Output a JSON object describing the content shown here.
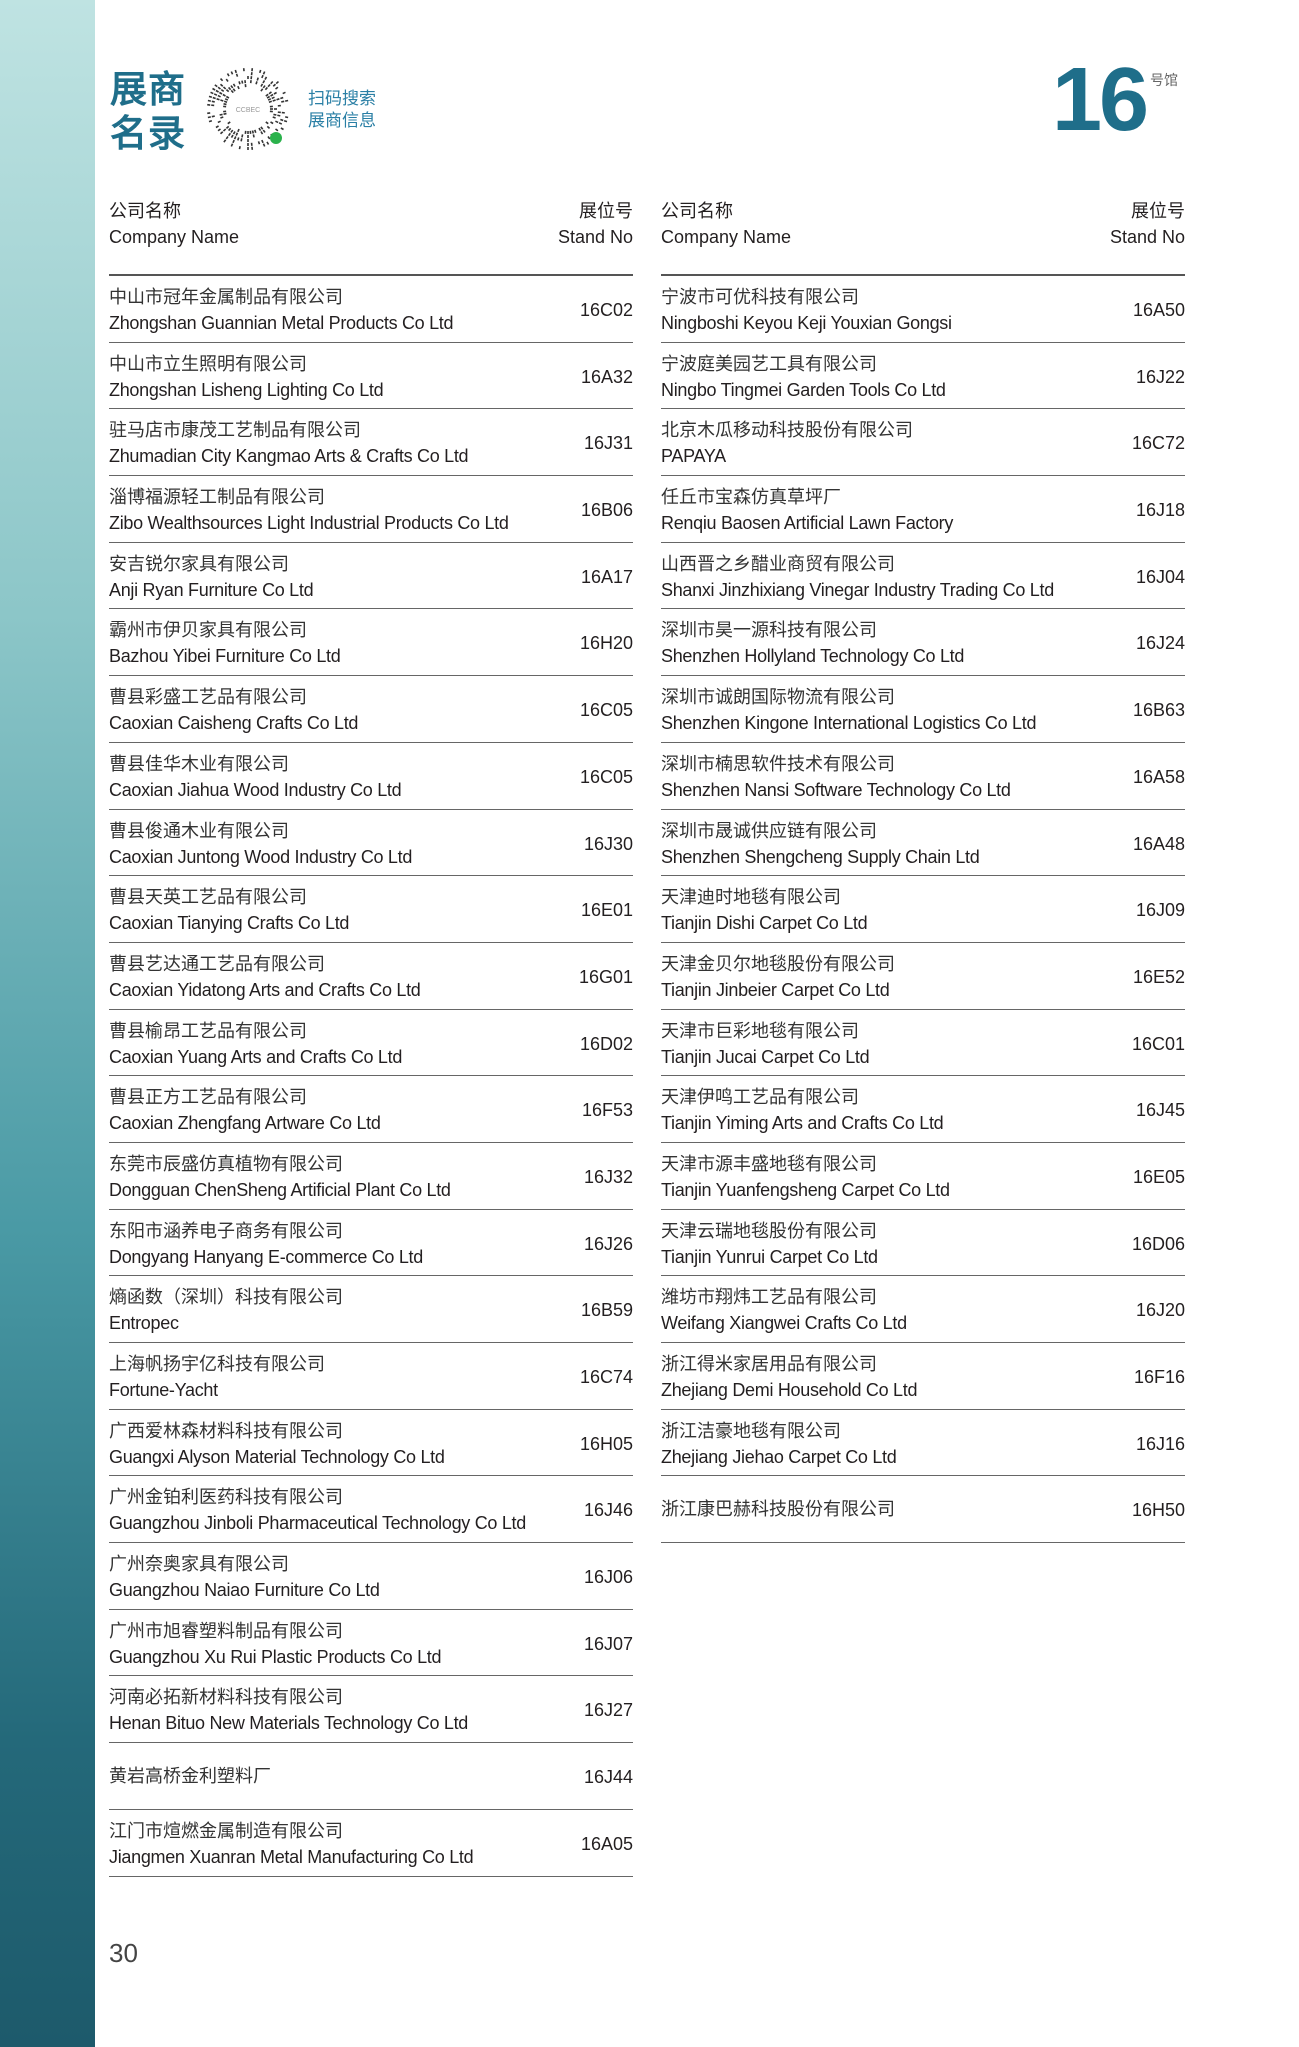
{
  "header": {
    "title_line1": "展商",
    "title_line2": "名录",
    "scan_line1": "扫码搜索",
    "scan_line2": "展商信息",
    "hall_number": "16",
    "hall_unit": "号馆",
    "qr_logo_text": "CCBEC"
  },
  "columns_header": {
    "company_zh": "公司名称",
    "company_en": "Company Name",
    "stand_zh": "展位号",
    "stand_en": "Stand No"
  },
  "left_rows": [
    {
      "zh": "中山市冠年金属制品有限公司",
      "en": "Zhongshan Guannian Metal Products Co Ltd",
      "no": "16C02"
    },
    {
      "zh": "中山市立生照明有限公司",
      "en": "Zhongshan Lisheng Lighting Co Ltd",
      "no": "16A32"
    },
    {
      "zh": "驻马店市康茂工艺制品有限公司",
      "en": "Zhumadian City Kangmao Arts & Crafts Co Ltd",
      "no": "16J31"
    },
    {
      "zh": "淄博福源轻工制品有限公司",
      "en": "Zibo Wealthsources Light Industrial Products Co Ltd",
      "no": "16B06"
    },
    {
      "zh": "安吉锐尔家具有限公司",
      "en": "Anji Ryan Furniture Co Ltd",
      "no": "16A17"
    },
    {
      "zh": "霸州市伊贝家具有限公司",
      "en": "Bazhou Yibei Furniture Co  Ltd",
      "no": "16H20"
    },
    {
      "zh": "曹县彩盛工艺品有限公司",
      "en": "Caoxian Caisheng Crafts Co Ltd",
      "no": "16C05"
    },
    {
      "zh": "曹县佳华木业有限公司",
      "en": "Caoxian Jiahua Wood Industry Co Ltd",
      "no": "16C05"
    },
    {
      "zh": "曹县俊通木业有限公司",
      "en": "Caoxian Juntong Wood Industry Co Ltd",
      "no": "16J30"
    },
    {
      "zh": "曹县天英工艺品有限公司",
      "en": "Caoxian Tianying Crafts Co Ltd",
      "no": "16E01"
    },
    {
      "zh": "曹县艺达通工艺品有限公司",
      "en": "Caoxian Yidatong Arts and Crafts Co Ltd",
      "no": "16G01"
    },
    {
      "zh": "曹县榆昂工艺品有限公司",
      "en": "Caoxian Yuang Arts and Crafts Co Ltd",
      "no": "16D02"
    },
    {
      "zh": "曹县正方工艺品有限公司",
      "en": "Caoxian Zhengfang Artware Co Ltd",
      "no": "16F53"
    },
    {
      "zh": "东莞市辰盛仿真植物有限公司",
      "en": "Dongguan ChenSheng Artificial Plant Co Ltd",
      "no": "16J32"
    },
    {
      "zh": "东阳市涵养电子商务有限公司",
      "en": "Dongyang Hanyang E-commerce Co Ltd",
      "no": "16J26"
    },
    {
      "zh": "熵函数（深圳）科技有限公司",
      "en": "Entropec",
      "no": "16B59"
    },
    {
      "zh": "上海帆扬宇亿科技有限公司",
      "en": "Fortune-Yacht",
      "no": "16C74"
    },
    {
      "zh": "广西爱林森材料科技有限公司",
      "en": "Guangxi Alyson Material Technology Co Ltd",
      "no": "16H05"
    },
    {
      "zh": "广州金铂利医药科技有限公司",
      "en": "Guangzhou Jinboli Pharmaceutical Technology Co Ltd",
      "no": "16J46"
    },
    {
      "zh": "广州奈奥家具有限公司",
      "en": "Guangzhou Naiao Furniture Co Ltd",
      "no": "16J06"
    },
    {
      "zh": "广州市旭睿塑料制品有限公司",
      "en": "Guangzhou Xu Rui Plastic Products Co Ltd",
      "no": "16J07"
    },
    {
      "zh": "河南必拓新材料科技有限公司",
      "en": "Henan Bituo New Materials Technology Co Ltd",
      "no": "16J27"
    },
    {
      "zh": "黄岩高桥金利塑料厂",
      "en": "",
      "no": "16J44"
    },
    {
      "zh": "江门市煊燃金属制造有限公司",
      "en": "Jiangmen Xuanran Metal Manufacturing Co Ltd",
      "no": "16A05"
    }
  ],
  "right_rows": [
    {
      "zh": "宁波市可优科技有限公司",
      "en": "Ningboshi Keyou Keji Youxian Gongsi",
      "no": "16A50"
    },
    {
      "zh": "宁波庭美园艺工具有限公司",
      "en": "Ningbo Tingmei Garden Tools Co Ltd",
      "no": "16J22"
    },
    {
      "zh": "北京木瓜移动科技股份有限公司",
      "en": "PAPAYA",
      "no": "16C72"
    },
    {
      "zh": "任丘市宝森仿真草坪厂",
      "en": "Renqiu Baosen Artificial Lawn Factory",
      "no": "16J18"
    },
    {
      "zh": "山西晋之乡醋业商贸有限公司",
      "en": "Shanxi Jinzhixiang Vinegar Industry Trading Co Ltd",
      "no": "16J04"
    },
    {
      "zh": "深圳市昊一源科技有限公司",
      "en": "Shenzhen Hollyland Technology Co Ltd",
      "no": "16J24"
    },
    {
      "zh": "深圳市诚朗国际物流有限公司",
      "en": "Shenzhen Kingone International Logistics Co Ltd",
      "no": "16B63"
    },
    {
      "zh": "深圳市楠思软件技术有限公司",
      "en": "Shenzhen Nansi Software Technology Co Ltd",
      "no": "16A58"
    },
    {
      "zh": "深圳市晟诚供应链有限公司",
      "en": "Shenzhen Shengcheng Supply Chain Ltd",
      "no": "16A48"
    },
    {
      "zh": "天津迪时地毯有限公司",
      "en": "Tianjin Dishi Carpet Co Ltd",
      "no": "16J09"
    },
    {
      "zh": "天津金贝尔地毯股份有限公司",
      "en": "Tianjin Jinbeier Carpet Co Ltd",
      "no": "16E52"
    },
    {
      "zh": "天津市巨彩地毯有限公司",
      "en": "Tianjin Jucai Carpet Co Ltd",
      "no": "16C01"
    },
    {
      "zh": "天津伊鸣工艺品有限公司",
      "en": "Tianjin Yiming Arts and Crafts Co Ltd",
      "no": "16J45"
    },
    {
      "zh": "天津市源丰盛地毯有限公司",
      "en": "Tianjin Yuanfengsheng Carpet Co Ltd",
      "no": "16E05"
    },
    {
      "zh": "天津云瑞地毯股份有限公司",
      "en": "Tianjin Yunrui Carpet Co Ltd",
      "no": "16D06"
    },
    {
      "zh": "潍坊市翔炜工艺品有限公司",
      "en": "Weifang Xiangwei Crafts Co Ltd",
      "no": "16J20"
    },
    {
      "zh": "浙江得米家居用品有限公司",
      "en": "Zhejiang Demi Household Co Ltd",
      "no": "16F16"
    },
    {
      "zh": "浙江洁豪地毯有限公司",
      "en": "Zhejiang Jiehao Carpet Co Ltd",
      "no": "16J16"
    },
    {
      "zh": "浙江康巴赫科技股份有限公司",
      "en": "",
      "no": "16H50"
    }
  ],
  "footer": {
    "page_number": "30"
  },
  "colors": {
    "brand_teal": "#1f6e8a",
    "scan_text": "#2a7fa5"
  }
}
